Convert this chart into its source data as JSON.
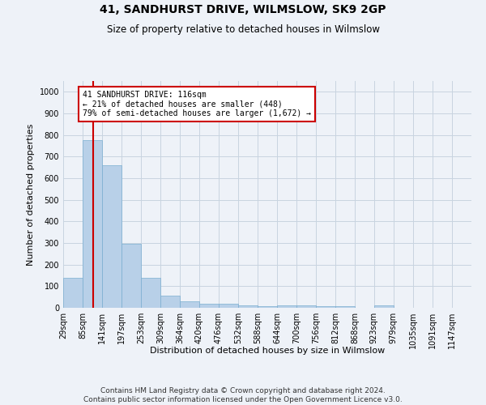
{
  "title": "41, SANDHURST DRIVE, WILMSLOW, SK9 2GP",
  "subtitle": "Size of property relative to detached houses in Wilmslow",
  "xlabel": "Distribution of detached houses by size in Wilmslow",
  "ylabel": "Number of detached properties",
  "bar_edges": [
    29,
    85,
    141,
    197,
    253,
    309,
    364,
    420,
    476,
    532,
    588,
    644,
    700,
    756,
    812,
    868,
    923,
    979,
    1035,
    1091,
    1147
  ],
  "bar_heights": [
    140,
    778,
    660,
    295,
    138,
    55,
    30,
    18,
    18,
    12,
    8,
    10,
    10,
    8,
    8,
    0,
    10,
    0,
    0,
    0,
    0
  ],
  "bar_color": "#b8d0e8",
  "bar_edge_color": "#7aaed0",
  "grid_color": "#c8d4e0",
  "property_sqm": 116,
  "red_line_color": "#cc0000",
  "annotation_line1": "41 SANDHURST DRIVE: 116sqm",
  "annotation_line2": "← 21% of detached houses are smaller (448)",
  "annotation_line3": "79% of semi-detached houses are larger (1,672) →",
  "annotation_box_facecolor": "#ffffff",
  "annotation_box_edgecolor": "#cc0000",
  "ylim_max": 1050,
  "yticks": [
    0,
    100,
    200,
    300,
    400,
    500,
    600,
    700,
    800,
    900,
    1000
  ],
  "footer_line1": "Contains HM Land Registry data © Crown copyright and database right 2024.",
  "footer_line2": "Contains public sector information licensed under the Open Government Licence v3.0.",
  "background_color": "#eef2f8",
  "title_fontsize": 10,
  "subtitle_fontsize": 8.5,
  "axis_label_fontsize": 8,
  "tick_fontsize": 7,
  "footer_fontsize": 6.5
}
